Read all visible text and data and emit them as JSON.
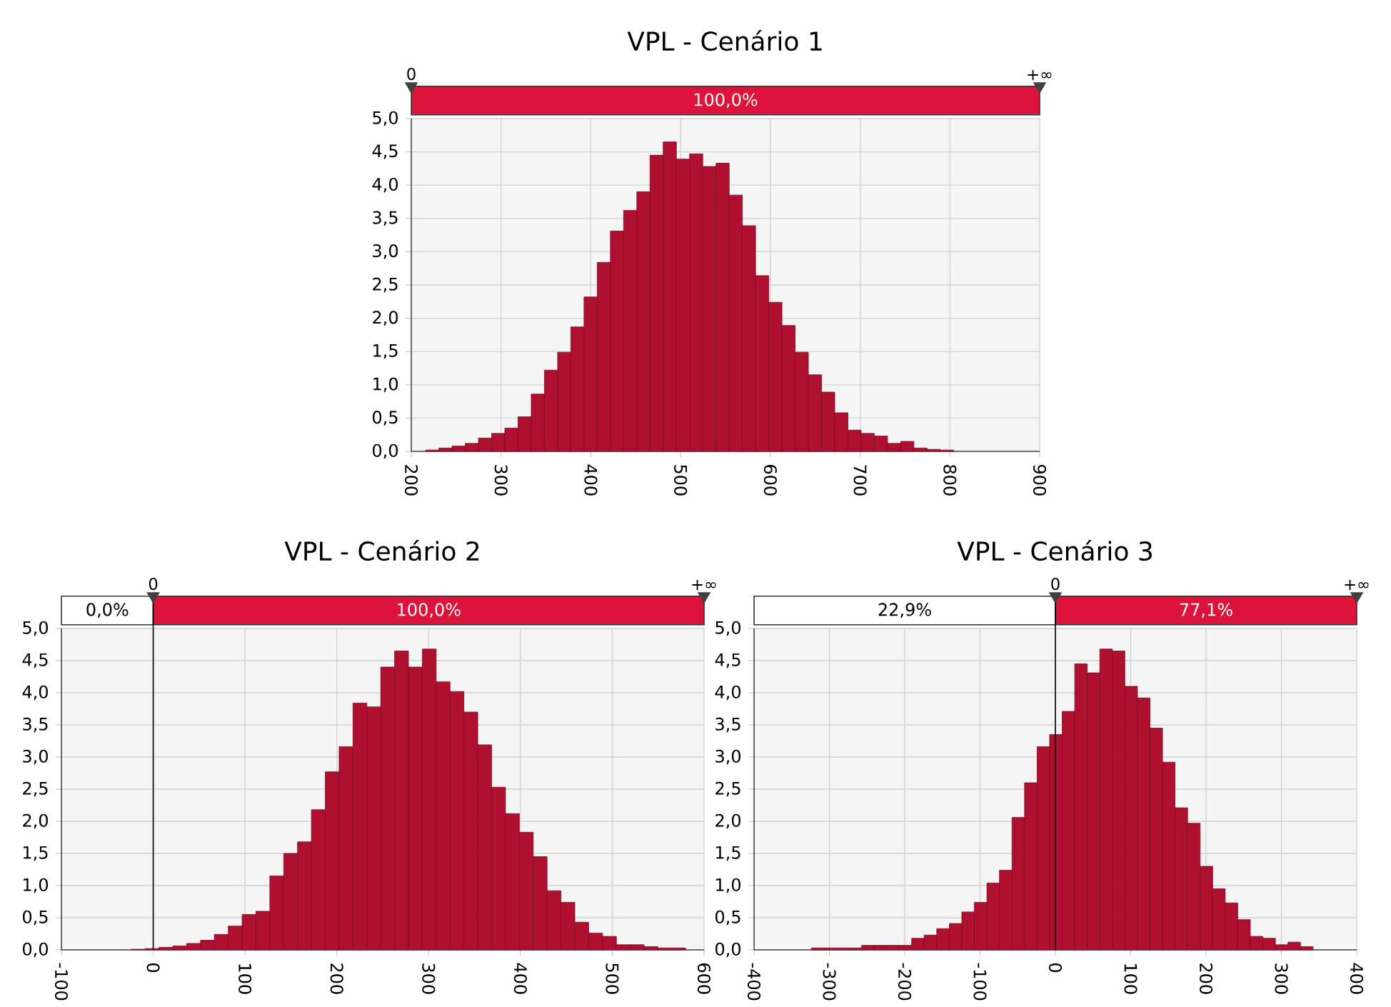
{
  "chart_data": [
    {
      "type": "histogram",
      "title": "VPL - Cenário 1",
      "color": "#b01030",
      "grid": true,
      "bins": [
        216,
        230.7,
        245.4,
        260.1,
        274.8,
        289.5,
        304.2,
        318.9,
        333.6,
        348.3,
        363,
        377.7,
        392.4,
        407.1,
        421.8,
        436.5,
        451.2,
        465.9,
        480.6,
        495.3,
        510,
        524.7,
        539.4,
        554.1,
        568.8,
        583.5,
        598.2,
        612.9,
        627.6,
        642.3,
        657,
        671.7,
        686.4,
        701.1,
        715.8,
        730.5,
        745.2,
        759.9,
        774.6,
        789.3,
        804
      ],
      "values": [
        0.02,
        0.05,
        0.08,
        0.12,
        0.2,
        0.27,
        0.35,
        0.52,
        0.86,
        1.22,
        1.49,
        1.87,
        2.32,
        2.84,
        3.31,
        3.62,
        3.9,
        4.45,
        4.65,
        4.39,
        4.47,
        4.28,
        4.33,
        3.85,
        3.39,
        2.64,
        2.24,
        1.89,
        1.49,
        1.15,
        0.89,
        0.58,
        0.32,
        0.27,
        0.23,
        0.12,
        0.15,
        0.05,
        0.03,
        0.02
      ],
      "xlim": [
        200,
        900
      ],
      "xticks": [
        200,
        300,
        400,
        500,
        600,
        700,
        800,
        900
      ],
      "ylim": [
        0,
        5
      ],
      "yticks": [
        {
          "value": 0,
          "label": "0,0"
        },
        {
          "value": 0.5,
          "label": "0,5"
        },
        {
          "value": 1,
          "label": "1,0"
        },
        {
          "value": 1.5,
          "label": "1,5"
        },
        {
          "value": 2,
          "label": "2,0"
        },
        {
          "value": 2.5,
          "label": "2,5"
        },
        {
          "value": 3,
          "label": "3,0"
        },
        {
          "value": 3.5,
          "label": "3,5"
        },
        {
          "value": 4,
          "label": "4,0"
        },
        {
          "value": 4.5,
          "label": "4,5"
        },
        {
          "value": 5,
          "label": "5,0"
        }
      ],
      "annotations": [
        "0",
        "+∞",
        "100,0%"
      ]
    },
    {
      "type": "histogram",
      "title": "VPL - Cenário 2",
      "color": "#b01030",
      "grid": true,
      "bins": [
        -24,
        -8.9,
        6.2,
        21.3,
        36.4,
        51.5,
        66.6,
        81.7,
        96.8,
        111.9,
        127,
        142.1,
        157.2,
        172.3,
        187.4,
        202.5,
        217.6,
        232.7,
        247.8,
        262.9,
        278,
        293.1,
        308.2,
        323.3,
        338.4,
        353.5,
        368.6,
        383.7,
        398.8,
        413.9,
        429,
        444.1,
        459.2,
        474.3,
        489.4,
        504.5,
        519.6,
        534.7,
        549.8,
        564.9,
        580
      ],
      "values": [
        0.01,
        0.02,
        0.04,
        0.06,
        0.1,
        0.15,
        0.24,
        0.37,
        0.55,
        0.6,
        1.15,
        1.5,
        1.68,
        2.18,
        2.77,
        3.16,
        3.84,
        3.78,
        4.4,
        4.65,
        4.4,
        4.68,
        4.17,
        4.02,
        3.7,
        3.19,
        2.53,
        2.12,
        1.83,
        1.45,
        0.92,
        0.74,
        0.43,
        0.26,
        0.21,
        0.08,
        0.08,
        0.05,
        0.03,
        0.03
      ],
      "xlim": [
        -100,
        600
      ],
      "xticks": [
        -100,
        0,
        100,
        200,
        300,
        400,
        500,
        600
      ],
      "ylim": [
        0,
        5
      ],
      "yticks": [
        {
          "value": 0,
          "label": "0,0"
        },
        {
          "value": 0.5,
          "label": "0,5"
        },
        {
          "value": 1,
          "label": "1,0"
        },
        {
          "value": 1.5,
          "label": "1,5"
        },
        {
          "value": 2,
          "label": "2,0"
        },
        {
          "value": 2.5,
          "label": "2,5"
        },
        {
          "value": 3,
          "label": "3,0"
        },
        {
          "value": 3.5,
          "label": "3,5"
        },
        {
          "value": 4,
          "label": "4,0"
        },
        {
          "value": 4.5,
          "label": "4,5"
        },
        {
          "value": 5,
          "label": "5,0"
        }
      ],
      "ref_lines": [
        {
          "axis": "x",
          "value": 0,
          "color": "#000000"
        }
      ],
      "annotations": [
        "0",
        "+∞",
        "0,0%",
        "100,0%"
      ]
    },
    {
      "type": "histogram",
      "title": "VPL - Cenário 3",
      "color": "#b01030",
      "grid": true,
      "bins": [
        -324,
        -307.35,
        -290.7,
        -274.05,
        -257.4,
        -240.75,
        -224.1,
        -207.45,
        -190.8,
        -174.15,
        -157.5,
        -140.85,
        -124.2,
        -107.55,
        -90.9,
        -74.25,
        -57.6,
        -40.95,
        -24.3,
        -7.65,
        9,
        25.65,
        42.3,
        58.95,
        75.6,
        92.25,
        108.9,
        125.55,
        142.2,
        158.85,
        175.5,
        192.15,
        208.8,
        225.45,
        242.1,
        258.75,
        275.4,
        292.05,
        308.7,
        325.35,
        342
      ],
      "values": [
        0.03,
        0.03,
        0.03,
        0.03,
        0.07,
        0.07,
        0.07,
        0.07,
        0.18,
        0.23,
        0.33,
        0.41,
        0.59,
        0.74,
        1.04,
        1.24,
        2.06,
        2.6,
        3.16,
        3.35,
        3.71,
        4.45,
        4.31,
        4.68,
        4.65,
        4.1,
        3.92,
        3.45,
        2.92,
        2.21,
        1.97,
        1.3,
        0.95,
        0.73,
        0.47,
        0.21,
        0.18,
        0.08,
        0.12,
        0.05
      ],
      "xlim": [
        -400,
        400
      ],
      "xticks": [
        -400,
        -300,
        -200,
        -100,
        0,
        100,
        200,
        300,
        400
      ],
      "ylim": [
        0,
        5
      ],
      "yticks": [
        {
          "value": 0,
          "label": "0,0"
        },
        {
          "value": 0.5,
          "label": "0,5"
        },
        {
          "value": 1,
          "label": "1,0"
        },
        {
          "value": 1.5,
          "label": "1,5"
        },
        {
          "value": 2,
          "label": "2,0"
        },
        {
          "value": 2.5,
          "label": "2,5"
        },
        {
          "value": 3,
          "label": "3,0"
        },
        {
          "value": 3.5,
          "label": "3,5"
        },
        {
          "value": 4,
          "label": "4,0"
        },
        {
          "value": 4.5,
          "label": "4,5"
        },
        {
          "value": 5,
          "label": "5,0"
        }
      ],
      "ref_lines": [
        {
          "axis": "x",
          "value": 0,
          "color": "#000000"
        }
      ],
      "annotations": [
        "0",
        "+∞",
        "22,9%",
        "77,1%"
      ]
    }
  ]
}
